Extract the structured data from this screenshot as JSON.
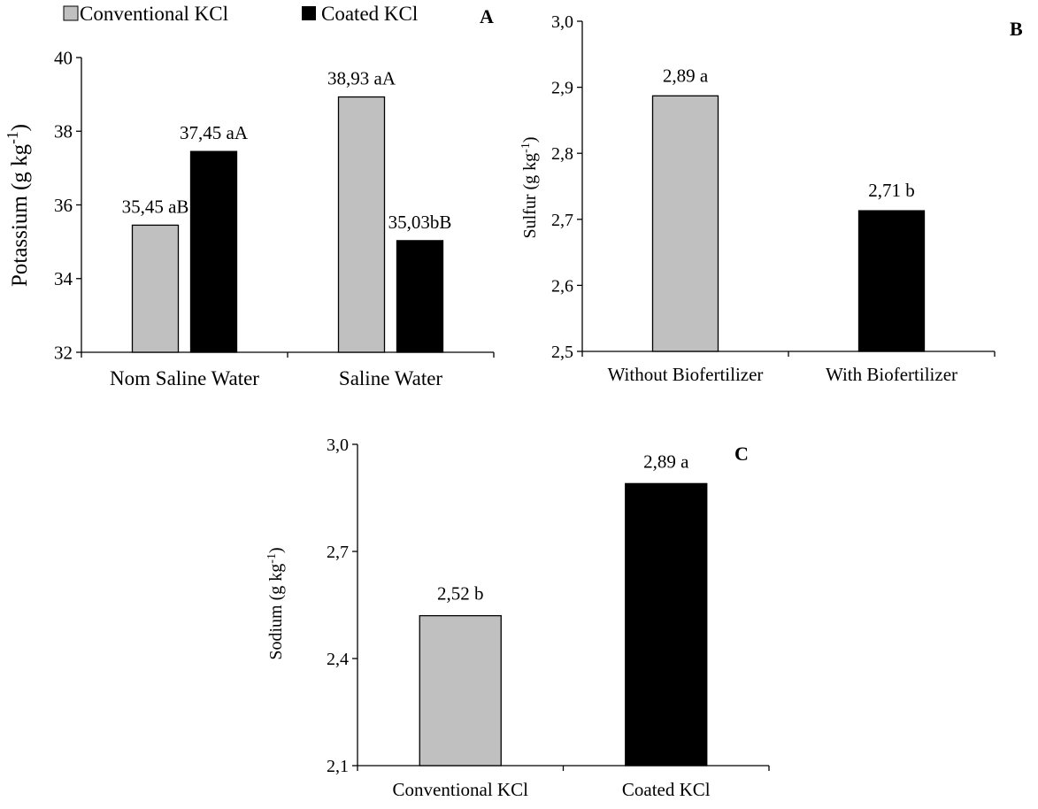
{
  "colors": {
    "conventional": "#c0c0c0",
    "coated": "#000000",
    "axis": "#000000"
  },
  "chart_data": [
    {
      "panel": "A",
      "type": "bar",
      "ylabel": "Potassium (g kg-1)",
      "ylabel_sup": "-1",
      "ylim": [
        32,
        40
      ],
      "yticks": [
        "32",
        "34",
        "36",
        "38",
        "40"
      ],
      "tick_values": [
        32,
        34,
        36,
        38,
        40
      ],
      "categories": [
        "Nom Saline Water",
        "Saline Water"
      ],
      "series": [
        {
          "name": "Conventional KCl",
          "color": "#c0c0c0",
          "values": [
            35.45,
            38.93
          ],
          "labels": [
            "35,45 aB",
            "38,93 aA"
          ]
        },
        {
          "name": "Coated KCl",
          "color": "#000000",
          "values": [
            37.45,
            35.03
          ],
          "labels": [
            "37,45 aA",
            "35,03bB"
          ]
        }
      ],
      "legend": "top-left",
      "grid": false
    },
    {
      "panel": "B",
      "type": "bar",
      "ylabel": "Sulfur (g kg-1)",
      "ylabel_sup": "-1",
      "ylim": [
        2.5,
        3.0
      ],
      "yticks": [
        "2,5",
        "2,6",
        "2,7",
        "2,8",
        "2,9",
        "3,0"
      ],
      "tick_values": [
        2.5,
        2.6,
        2.7,
        2.8,
        2.9,
        3.0
      ],
      "categories": [
        "Without Biofertilizer",
        "With Biofertilizer"
      ],
      "values": [
        2.887,
        2.713
      ],
      "labels": [
        "2,89 a",
        "2,71 b"
      ],
      "colors": [
        "#c0c0c0",
        "#000000"
      ],
      "grid": false
    },
    {
      "panel": "C",
      "type": "bar",
      "ylabel": "Sodium (g kg-1)",
      "ylabel_sup": "-1",
      "ylim": [
        2.1,
        3.0
      ],
      "yticks": [
        "2,1",
        "2,4",
        "2,7",
        "3,0"
      ],
      "tick_values": [
        2.1,
        2.4,
        2.7,
        3.0
      ],
      "categories": [
        "Conventional KCl",
        "Coated KCl"
      ],
      "values": [
        2.52,
        2.89
      ],
      "labels": [
        "2,52 b",
        "2,89 a"
      ],
      "colors": [
        "#c0c0c0",
        "#000000"
      ],
      "grid": false
    }
  ]
}
